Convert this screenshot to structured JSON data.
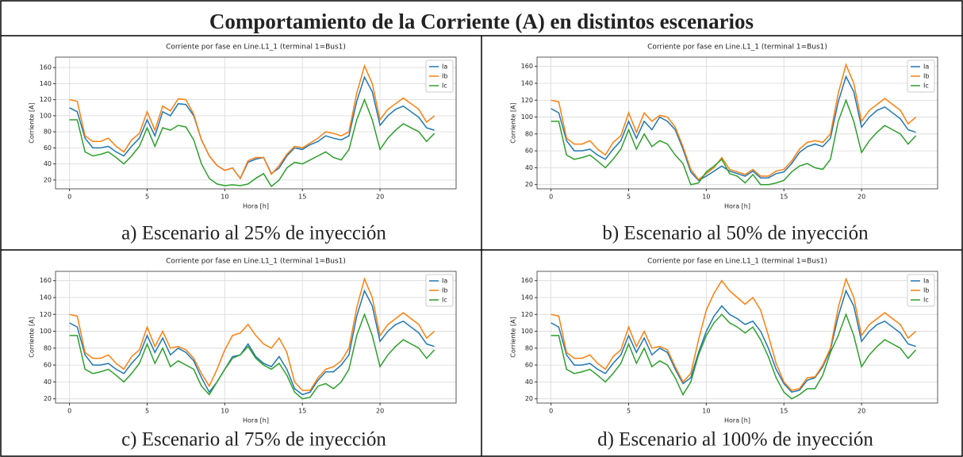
{
  "title": "Comportamiento de la Corriente (A) en distintos escenarios",
  "chart_data": [
    {
      "type": "line",
      "caption": "a)  Escenario al 25% de inyección",
      "title": "Corriente por fase en Line.L1_1 (terminal 1=Bus1)",
      "xlabel": "Hora [h]",
      "ylabel": "Corriente [A]",
      "x": [
        0,
        0.5,
        1,
        1.5,
        2,
        2.5,
        3,
        3.5,
        4,
        4.5,
        5,
        5.5,
        6,
        6.5,
        7,
        7.5,
        8,
        8.5,
        9,
        9.5,
        10,
        10.5,
        11,
        11.5,
        12,
        12.5,
        13,
        13.5,
        14,
        14.5,
        15,
        15.5,
        16,
        16.5,
        17,
        17.5,
        18,
        18.5,
        19,
        19.5,
        20,
        20.5,
        21,
        21.5,
        22,
        22.5,
        23,
        23.5
      ],
      "series": [
        {
          "name": "Ia",
          "color": "#1f77b4",
          "values": [
            110,
            105,
            72,
            60,
            60,
            62,
            55,
            50,
            62,
            72,
            95,
            75,
            105,
            100,
            115,
            114,
            100,
            70,
            50,
            38,
            32,
            35,
            22,
            42,
            46,
            48,
            28,
            35,
            50,
            60,
            58,
            64,
            68,
            75,
            72,
            70,
            75,
            118,
            148,
            130,
            88,
            100,
            108,
            112,
            105,
            98,
            85,
            82
          ]
        },
        {
          "name": "Ib",
          "color": "#ff7f0e",
          "values": [
            120,
            118,
            75,
            68,
            68,
            72,
            62,
            55,
            70,
            78,
            105,
            82,
            112,
            106,
            121,
            120,
            102,
            70,
            50,
            38,
            32,
            35,
            22,
            44,
            48,
            48,
            27,
            38,
            52,
            62,
            60,
            66,
            72,
            80,
            78,
            75,
            80,
            128,
            162,
            140,
            95,
            108,
            115,
            122,
            115,
            108,
            92,
            100
          ]
        },
        {
          "name": "Ic",
          "color": "#2ca02c",
          "values": [
            95,
            95,
            55,
            50,
            52,
            55,
            48,
            40,
            50,
            62,
            85,
            62,
            85,
            82,
            88,
            86,
            70,
            40,
            22,
            15,
            13,
            14,
            13,
            15,
            22,
            28,
            12,
            20,
            35,
            42,
            40,
            45,
            50,
            55,
            48,
            45,
            58,
            95,
            120,
            95,
            58,
            72,
            82,
            90,
            85,
            80,
            68,
            78
          ]
        }
      ],
      "xlim": [
        -0.9,
        24.9
      ],
      "xticks": [
        0,
        5,
        10,
        15,
        20
      ],
      "ylim": [
        9,
        173
      ],
      "yticks": [
        20,
        40,
        60,
        80,
        100,
        120,
        140,
        160
      ],
      "grid": true,
      "legend": "upper right"
    },
    {
      "type": "line",
      "caption": "b)  Escenario al 50% de inyección",
      "title": "Corriente por fase en Line.L1_1 (terminal 1=Bus1)",
      "xlabel": "Hora [h]",
      "ylabel": "Corriente [A]",
      "x": [
        0,
        0.5,
        1,
        1.5,
        2,
        2.5,
        3,
        3.5,
        4,
        4.5,
        5,
        5.5,
        6,
        6.5,
        7,
        7.5,
        8,
        8.5,
        9,
        9.5,
        10,
        10.5,
        11,
        11.5,
        12,
        12.5,
        13,
        13.5,
        14,
        14.5,
        15,
        15.5,
        16,
        16.5,
        17,
        17.5,
        18,
        18.5,
        19,
        19.5,
        20,
        20.5,
        21,
        21.5,
        22,
        22.5,
        23,
        23.5
      ],
      "series": [
        {
          "name": "Ia",
          "color": "#1f77b4",
          "values": [
            110,
            105,
            72,
            60,
            60,
            62,
            55,
            50,
            62,
            72,
            95,
            75,
            95,
            85,
            100,
            95,
            85,
            62,
            35,
            25,
            30,
            36,
            42,
            36,
            33,
            30,
            36,
            28,
            28,
            33,
            35,
            45,
            58,
            65,
            68,
            65,
            75,
            118,
            148,
            130,
            88,
            100,
            108,
            112,
            105,
            98,
            85,
            82
          ]
        },
        {
          "name": "Ib",
          "color": "#ff7f0e",
          "values": [
            120,
            118,
            75,
            68,
            68,
            72,
            62,
            55,
            70,
            78,
            105,
            82,
            105,
            95,
            102,
            100,
            88,
            65,
            38,
            26,
            33,
            40,
            52,
            38,
            35,
            32,
            38,
            30,
            30,
            36,
            38,
            48,
            62,
            70,
            72,
            70,
            80,
            128,
            162,
            140,
            95,
            108,
            115,
            122,
            115,
            108,
            92,
            100
          ]
        },
        {
          "name": "Ic",
          "color": "#2ca02c",
          "values": [
            95,
            95,
            55,
            50,
            52,
            55,
            48,
            40,
            50,
            62,
            85,
            62,
            80,
            65,
            72,
            68,
            55,
            45,
            20,
            22,
            35,
            42,
            50,
            33,
            30,
            22,
            32,
            20,
            20,
            22,
            25,
            35,
            42,
            45,
            40,
            38,
            50,
            95,
            120,
            95,
            58,
            72,
            82,
            90,
            85,
            80,
            68,
            78
          ]
        }
      ],
      "xlim": [
        -0.9,
        24.9
      ],
      "xticks": [
        0,
        5,
        10,
        15,
        20
      ],
      "ylim": [
        15,
        171
      ],
      "yticks": [
        20,
        40,
        60,
        80,
        100,
        120,
        140,
        160
      ],
      "grid": true,
      "legend": "upper right"
    },
    {
      "type": "line",
      "caption": "c)  Escenario al 75% de inyección",
      "title": "Corriente por fase en Line.L1_1 (terminal 1=Bus1)",
      "xlabel": "Hora [h]",
      "ylabel": "Corriente [A]",
      "x": [
        0,
        0.5,
        1,
        1.5,
        2,
        2.5,
        3,
        3.5,
        4,
        4.5,
        5,
        5.5,
        6,
        6.5,
        7,
        7.5,
        8,
        8.5,
        9,
        9.5,
        10,
        10.5,
        11,
        11.5,
        12,
        12.5,
        13,
        13.5,
        14,
        14.5,
        15,
        15.5,
        16,
        16.5,
        17,
        17.5,
        18,
        18.5,
        19,
        19.5,
        20,
        20.5,
        21,
        21.5,
        22,
        22.5,
        23,
        23.5
      ],
      "series": [
        {
          "name": "Ia",
          "color": "#1f77b4",
          "values": [
            110,
            105,
            72,
            60,
            60,
            62,
            55,
            50,
            62,
            72,
            95,
            75,
            92,
            72,
            80,
            75,
            65,
            45,
            28,
            40,
            55,
            70,
            72,
            85,
            70,
            62,
            58,
            70,
            55,
            32,
            25,
            28,
            42,
            52,
            52,
            60,
            72,
            118,
            148,
            130,
            88,
            100,
            108,
            112,
            105,
            98,
            85,
            82
          ]
        },
        {
          "name": "Ib",
          "color": "#ff7f0e",
          "values": [
            120,
            118,
            75,
            68,
            68,
            72,
            62,
            55,
            70,
            78,
            105,
            82,
            100,
            80,
            82,
            78,
            68,
            50,
            35,
            55,
            78,
            95,
            98,
            108,
            95,
            85,
            80,
            92,
            75,
            40,
            30,
            30,
            45,
            55,
            58,
            65,
            80,
            128,
            162,
            140,
            95,
            108,
            115,
            122,
            115,
            108,
            92,
            100
          ]
        },
        {
          "name": "Ic",
          "color": "#2ca02c",
          "values": [
            95,
            95,
            55,
            50,
            52,
            55,
            48,
            40,
            50,
            62,
            85,
            62,
            80,
            58,
            65,
            60,
            55,
            35,
            25,
            40,
            55,
            68,
            72,
            82,
            68,
            60,
            55,
            62,
            48,
            28,
            20,
            22,
            35,
            38,
            32,
            40,
            55,
            95,
            120,
            95,
            58,
            72,
            82,
            90,
            85,
            80,
            68,
            78
          ]
        }
      ],
      "xlim": [
        -0.9,
        24.9
      ],
      "xticks": [
        0,
        5,
        10,
        15,
        20
      ],
      "ylim": [
        15,
        171
      ],
      "yticks": [
        20,
        40,
        60,
        80,
        100,
        120,
        140,
        160
      ],
      "grid": true,
      "legend": "upper right"
    },
    {
      "type": "line",
      "caption": "d)  Escenario al 100% de inyección",
      "title": "Corriente por fase en Line.L1_1 (terminal 1=Bus1)",
      "xlabel": "Hora [h]",
      "ylabel": "Corriente [A]",
      "x": [
        0,
        0.5,
        1,
        1.5,
        2,
        2.5,
        3,
        3.5,
        4,
        4.5,
        5,
        5.5,
        6,
        6.5,
        7,
        7.5,
        8,
        8.5,
        9,
        9.5,
        10,
        10.5,
        11,
        11.5,
        12,
        12.5,
        13,
        13.5,
        14,
        14.5,
        15,
        15.5,
        16,
        16.5,
        17,
        17.5,
        18,
        18.5,
        19,
        19.5,
        20,
        20.5,
        21,
        21.5,
        22,
        22.5,
        23,
        23.5
      ],
      "series": [
        {
          "name": "Ia",
          "color": "#1f77b4",
          "values": [
            110,
            105,
            72,
            60,
            60,
            62,
            55,
            50,
            62,
            72,
            95,
            75,
            92,
            72,
            80,
            75,
            55,
            38,
            45,
            75,
            100,
            118,
            130,
            120,
            115,
            108,
            112,
            100,
            80,
            55,
            38,
            28,
            30,
            42,
            45,
            58,
            78,
            118,
            148,
            130,
            88,
            100,
            108,
            112,
            105,
            98,
            85,
            82
          ]
        },
        {
          "name": "Ib",
          "color": "#ff7f0e",
          "values": [
            120,
            118,
            75,
            68,
            68,
            72,
            62,
            55,
            70,
            78,
            105,
            82,
            100,
            80,
            82,
            78,
            58,
            40,
            50,
            90,
            125,
            145,
            160,
            148,
            140,
            132,
            140,
            125,
            95,
            62,
            40,
            30,
            32,
            45,
            46,
            60,
            80,
            128,
            162,
            140,
            95,
            108,
            115,
            122,
            115,
            108,
            92,
            100
          ]
        },
        {
          "name": "Ic",
          "color": "#2ca02c",
          "values": [
            95,
            95,
            55,
            50,
            52,
            55,
            48,
            40,
            50,
            62,
            85,
            62,
            80,
            58,
            65,
            60,
            45,
            25,
            40,
            72,
            95,
            110,
            120,
            110,
            105,
            98,
            105,
            90,
            70,
            45,
            28,
            20,
            25,
            32,
            32,
            48,
            75,
            95,
            120,
            95,
            58,
            72,
            82,
            90,
            85,
            80,
            68,
            78
          ]
        }
      ],
      "xlim": [
        -0.9,
        24.9
      ],
      "xticks": [
        0,
        5,
        10,
        15,
        20
      ],
      "ylim": [
        15,
        171
      ],
      "yticks": [
        20,
        40,
        60,
        80,
        100,
        120,
        140,
        160
      ],
      "grid": true,
      "legend": "upper right"
    }
  ]
}
